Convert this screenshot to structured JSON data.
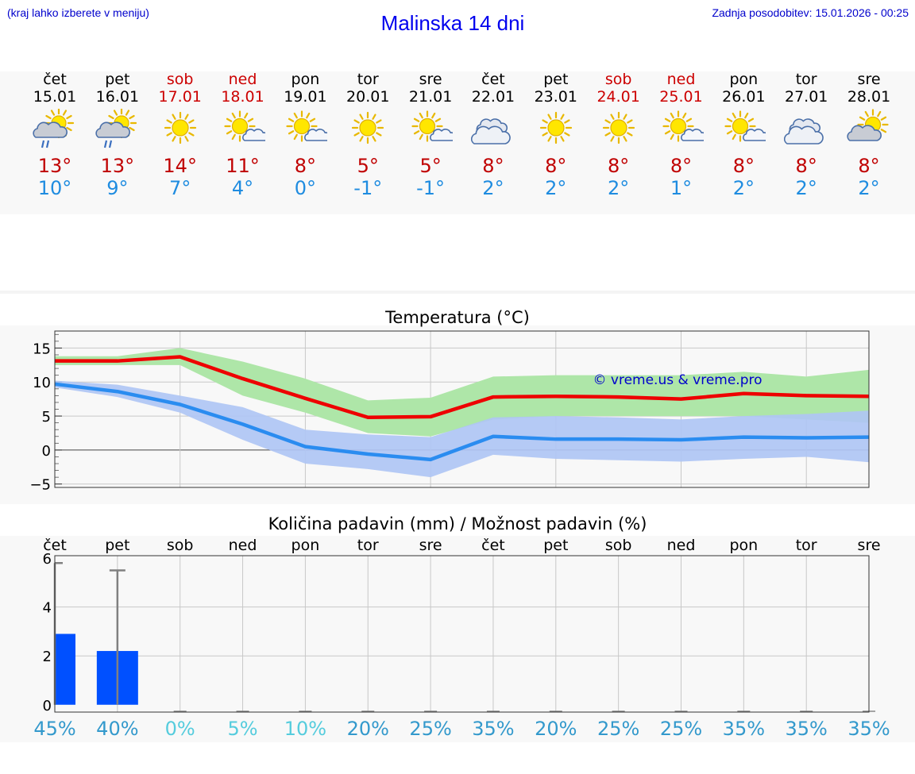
{
  "header": {
    "hint": "(kraj lahko izberete v meniju)",
    "title": "Malinska 14 dni",
    "updated": "Zadnja posodobitev: 15.01.2026 - 00:25"
  },
  "days": [
    {
      "name": "čet",
      "date": "15.01",
      "weekend": false,
      "icon": "sun-cloud-rain-icon",
      "max": "13°",
      "min": "10°"
    },
    {
      "name": "pet",
      "date": "16.01",
      "weekend": false,
      "icon": "sun-cloud-rain-icon",
      "max": "13°",
      "min": "9°"
    },
    {
      "name": "sob",
      "date": "17.01",
      "weekend": true,
      "icon": "sun-icon",
      "max": "14°",
      "min": "7°"
    },
    {
      "name": "ned",
      "date": "18.01",
      "weekend": true,
      "icon": "sun-small-cloud-icon",
      "max": "11°",
      "min": "4°"
    },
    {
      "name": "pon",
      "date": "19.01",
      "weekend": false,
      "icon": "sun-small-cloud-icon",
      "max": "8°",
      "min": "0°"
    },
    {
      "name": "tor",
      "date": "20.01",
      "weekend": false,
      "icon": "sun-icon",
      "max": "5°",
      "min": "-1°"
    },
    {
      "name": "sre",
      "date": "21.01",
      "weekend": false,
      "icon": "sun-small-cloud-icon",
      "max": "5°",
      "min": "-1°"
    },
    {
      "name": "čet",
      "date": "22.01",
      "weekend": false,
      "icon": "clouds-icon",
      "max": "8°",
      "min": "2°"
    },
    {
      "name": "pet",
      "date": "23.01",
      "weekend": false,
      "icon": "sun-icon",
      "max": "8°",
      "min": "2°"
    },
    {
      "name": "sob",
      "date": "24.01",
      "weekend": true,
      "icon": "sun-icon",
      "max": "8°",
      "min": "2°"
    },
    {
      "name": "ned",
      "date": "25.01",
      "weekend": true,
      "icon": "sun-small-cloud-icon",
      "max": "8°",
      "min": "1°"
    },
    {
      "name": "pon",
      "date": "26.01",
      "weekend": false,
      "icon": "sun-small-cloud-icon",
      "max": "8°",
      "min": "2°"
    },
    {
      "name": "tor",
      "date": "27.01",
      "weekend": false,
      "icon": "clouds-icon",
      "max": "8°",
      "min": "2°"
    },
    {
      "name": "sre",
      "date": "28.01",
      "weekend": false,
      "icon": "sun-cloud-icon",
      "max": "8°",
      "min": "2°"
    }
  ],
  "colors": {
    "max_line": "#ee0000",
    "min_line": "#2a8cf0",
    "max_band": "#aee6a8",
    "min_band": "#afc6f4",
    "bar": "#0050ff",
    "whisker": "#808080",
    "watermark": "#0000cc",
    "pct_dark": "#3399cc",
    "pct_light": "#55ccdd",
    "weekend": "#cc0000"
  },
  "chart_data": [
    {
      "type": "line",
      "title": "Temperatura (°C)",
      "watermark": "© vreme.us & vreme.pro",
      "ylim": [
        -5.5,
        17.5
      ],
      "yticks": [
        -5,
        0,
        5,
        10,
        15
      ],
      "series": [
        {
          "name": "max",
          "values": [
            13.1,
            13.1,
            13.7,
            10.5,
            7.6,
            4.8,
            4.9,
            7.8,
            7.9,
            7.8,
            7.5,
            8.3,
            8.0,
            7.9
          ],
          "band_low": [
            12.5,
            12.5,
            12.5,
            8.0,
            5.5,
            2.5,
            2.0,
            4.5,
            5.0,
            5.0,
            5.0,
            5.0,
            4.5,
            4.0
          ],
          "band_high": [
            13.8,
            13.8,
            15.0,
            13.0,
            10.5,
            7.3,
            7.7,
            10.8,
            11.0,
            11.0,
            11.0,
            11.5,
            10.8,
            11.8
          ]
        },
        {
          "name": "min",
          "values": [
            9.7,
            8.6,
            6.7,
            3.8,
            0.5,
            -0.6,
            -1.4,
            2.0,
            1.6,
            1.6,
            1.5,
            1.9,
            1.8,
            1.9
          ],
          "band_low": [
            9.2,
            7.8,
            5.5,
            1.5,
            -2.0,
            -2.8,
            -4.0,
            -0.7,
            -1.3,
            -1.5,
            -1.7,
            -1.3,
            -1.0,
            -1.8
          ],
          "band_high": [
            10.2,
            9.6,
            8.0,
            6.3,
            3.0,
            2.3,
            1.9,
            4.8,
            5.0,
            4.8,
            4.5,
            5.0,
            5.3,
            5.8
          ]
        }
      ]
    },
    {
      "type": "bar",
      "title": "Količina padavin (mm) / Možnost padavin (%)",
      "ylim": [
        -0.3,
        6.1
      ],
      "yticks": [
        0,
        2,
        4,
        6
      ],
      "categories": [
        "čet",
        "pet",
        "sob",
        "ned",
        "pon",
        "tor",
        "sre",
        "čet",
        "pet",
        "sob",
        "ned",
        "pon",
        "tor",
        "sre"
      ],
      "values": [
        2.9,
        2.2,
        0,
        0,
        0,
        0,
        0,
        0,
        0,
        0,
        0,
        0,
        0,
        0
      ],
      "error_high": [
        5.8,
        5.5,
        0,
        0,
        0,
        0,
        0,
        0,
        0,
        0,
        0,
        0,
        0,
        0
      ],
      "probability": [
        "45%",
        "40%",
        "0%",
        "5%",
        "10%",
        "20%",
        "25%",
        "35%",
        "20%",
        "25%",
        "25%",
        "35%",
        "35%",
        "35%"
      ]
    }
  ]
}
